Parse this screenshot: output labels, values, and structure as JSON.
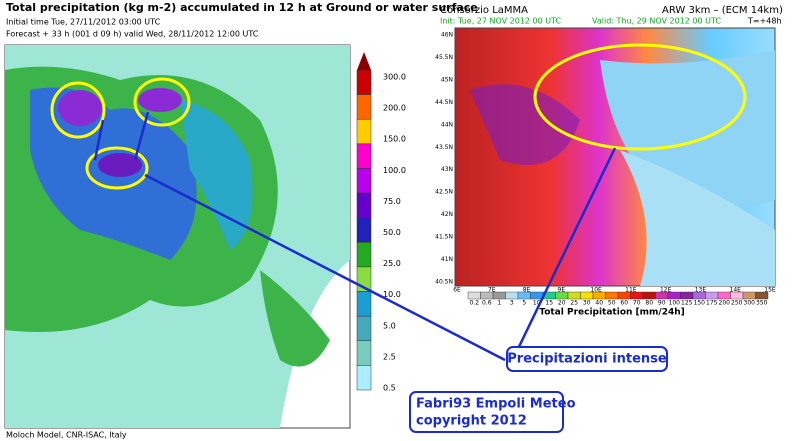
{
  "left_map": {
    "title": "Total precipitation (kg m-2) accumulated in  12 h at Ground or water surface",
    "initial": "Initial time  Tue, 27/11/2012  03:00 UTC",
    "forecast": "Forecast  +  33 h  (001 d 09 h)  valid Wed, 28/11/2012 12:00 UTC",
    "scale": [
      "300.0",
      "200.0",
      "150.0",
      "100.0",
      "75.0",
      "50.0",
      "25.0",
      "10.0",
      "5.0",
      "2.5",
      "0.5"
    ],
    "credit": "Moloch Model, CNR-ISAC, Italy"
  },
  "right_map": {
    "org": "Consorzio LaMMA",
    "model": "ARW 3km – (ECM 14km)",
    "init": "Init: Tue, 27 NOV 2012  00 UTC",
    "valid": "Valid: Thu, 29 NOV 2012  00 UTC",
    "step": "T=+48h",
    "lats": [
      "46N",
      "45.5N",
      "45N",
      "44.5N",
      "44N",
      "43.5N",
      "43N",
      "42.5N",
      "42N",
      "41.5N",
      "41N",
      "40.5N"
    ],
    "lons": [
      "6E",
      "7E",
      "8E",
      "9E",
      "10E",
      "11E",
      "12E",
      "13E",
      "14E",
      "15E"
    ],
    "scale": [
      "0.2",
      "0.6",
      "1",
      "3",
      "5",
      "10",
      "15",
      "20",
      "25",
      "30",
      "40",
      "50",
      "60",
      "70",
      "80",
      "90",
      "100",
      "125",
      "150",
      "175",
      "200",
      "250",
      "300",
      "350"
    ],
    "scale_title": "Total Precipitation [mm/24h]"
  },
  "annotations": {
    "callout": "Precipitazioni intense",
    "author": "Fabri93 Empoli Meteo",
    "copyright": "copyright 2012"
  }
}
